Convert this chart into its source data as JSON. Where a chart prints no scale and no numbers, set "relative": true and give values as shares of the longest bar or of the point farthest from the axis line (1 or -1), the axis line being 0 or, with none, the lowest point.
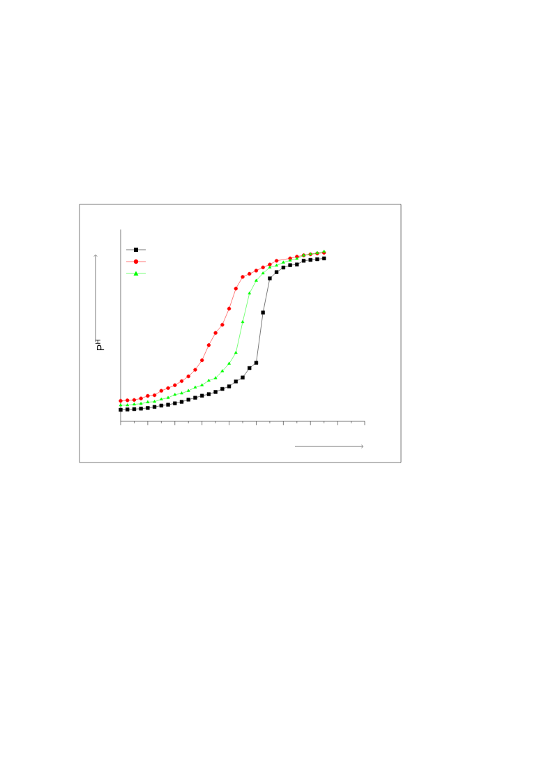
{
  "chart_data": {
    "type": "line",
    "relative": true,
    "ylabel": "P$^{H}$",
    "line_style": "solid",
    "categories": [
      null,
      null,
      null,
      null,
      null,
      null,
      null,
      null,
      null,
      null,
      null,
      null,
      null,
      null,
      null,
      null,
      null,
      null,
      null,
      null,
      null,
      null,
      null,
      null,
      null,
      null,
      null,
      null,
      null,
      null,
      null,
      null,
      null,
      null,
      null,
      null,
      null
    ],
    "series": [
      {
        "color": "#000000",
        "marker": "square",
        "values": [
          0.068,
          0.07,
          0.072,
          0.075,
          0.079,
          0.085,
          0.093,
          0.098,
          0.106,
          0.115,
          0.128,
          0.139,
          0.151,
          0.16,
          0.173,
          0.191,
          0.206,
          0.235,
          0.258,
          0.314,
          0.345,
          0.641,
          0.842,
          0.879,
          0.906,
          0.92,
          0.924,
          0.946,
          0.951,
          0.955,
          0.96,
          null,
          null,
          null,
          null,
          null,
          null
        ]
      },
      {
        "color": "#ff0000",
        "marker": "circle",
        "values": [
          0.121,
          0.124,
          0.126,
          0.135,
          0.15,
          0.154,
          0.18,
          0.196,
          0.213,
          0.237,
          0.265,
          0.304,
          0.36,
          0.449,
          0.521,
          0.569,
          0.664,
          0.782,
          0.851,
          0.869,
          0.888,
          0.907,
          0.924,
          0.946,
          null,
          0.96,
          0.97,
          0.978,
          0.984,
          0.989,
          0.993,
          null,
          null,
          null,
          null,
          null,
          null
        ]
      },
      {
        "color": "#00ff00",
        "marker": "triangle",
        "values": [
          0.095,
          0.095,
          0.1,
          0.104,
          0.113,
          0.116,
          0.13,
          0.139,
          0.157,
          0.165,
          0.18,
          0.2,
          0.213,
          0.24,
          0.255,
          0.296,
          0.34,
          0.404,
          0.585,
          0.754,
          0.829,
          0.872,
          0.907,
          0.918,
          0.936,
          0.948,
          0.958,
          0.978,
          0.985,
          0.992,
          1,
          null,
          null,
          null,
          null,
          null,
          null
        ]
      }
    ]
  }
}
